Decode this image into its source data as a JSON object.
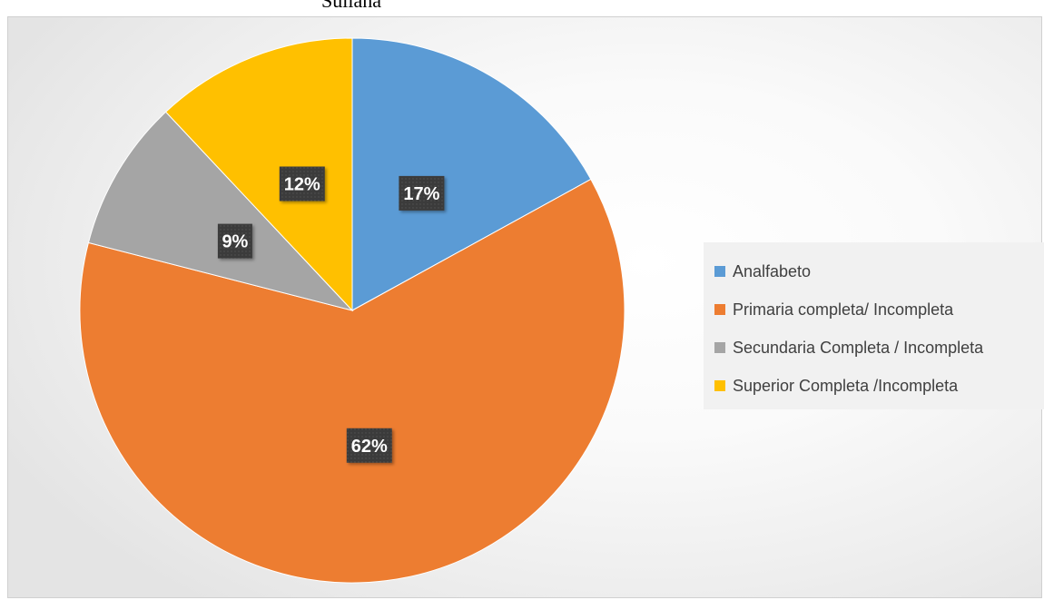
{
  "chart_data": {
    "type": "pie",
    "title": "Sullana",
    "categories": [
      "Analfabeto",
      "Primaria completa/ Incompleta",
      "Secundaria Completa / Incompleta",
      "Superior Completa /Incompleta"
    ],
    "values": [
      17,
      62,
      9,
      12
    ],
    "value_labels": [
      "17%",
      "62%",
      "9%",
      "12%"
    ],
    "colors": [
      "#5B9BD5",
      "#ED7D31",
      "#A5A5A5",
      "#FFC000"
    ],
    "start_angle": "12 o'clock",
    "direction": "clockwise",
    "legend_position": "right",
    "data_label_style": "white bold text on dark box"
  }
}
